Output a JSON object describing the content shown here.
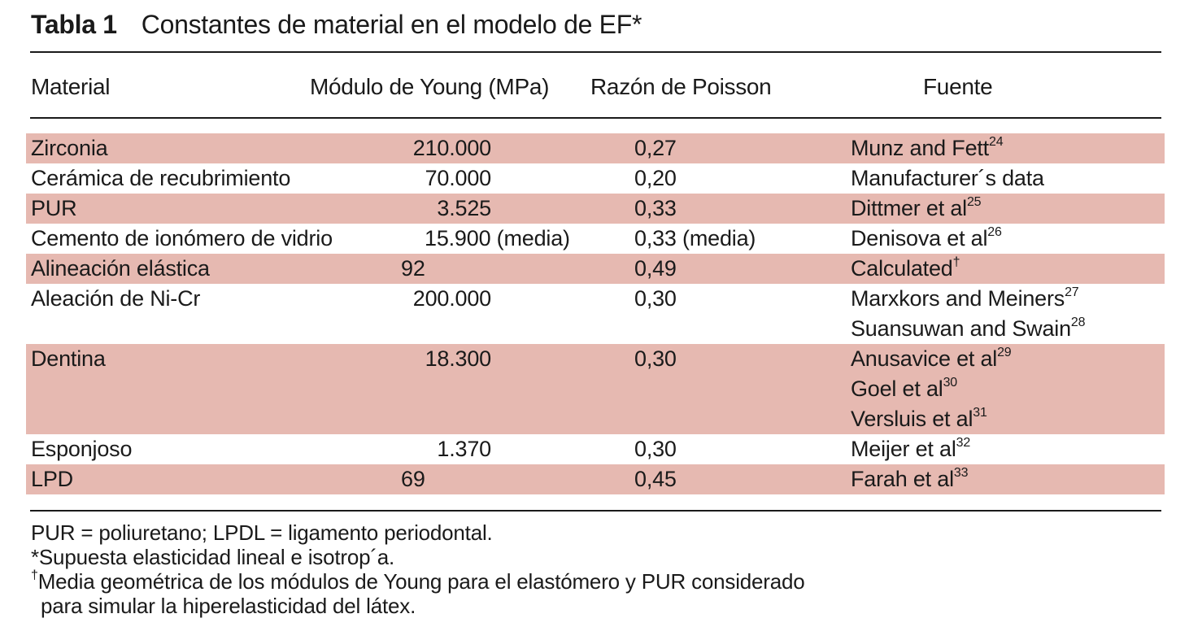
{
  "title": {
    "number": "Tabla 1",
    "text": "Constantes de material en el modelo de EF*"
  },
  "table": {
    "headers": {
      "material": "Material",
      "young": "Módulo de Young (MPa)",
      "poisson": "Razón de Poisson",
      "source": "Fuente"
    },
    "rows": [
      {
        "material": "Zirconia",
        "young": "210.000",
        "poisson": "0,27",
        "sources": [
          {
            "text": "Munz and Fett",
            "sup": "24"
          }
        ]
      },
      {
        "material": "Cerámica de recubrimiento",
        "young": "70.000",
        "poisson": "0,20",
        "sources": [
          {
            "text": "Manufacturer´s data",
            "sup": ""
          }
        ]
      },
      {
        "material": "PUR",
        "young": "3.525",
        "poisson": "0,33",
        "sources": [
          {
            "text": "Dittmer et al",
            "sup": "25"
          }
        ]
      },
      {
        "material": "Cemento de ionómero de vidrio",
        "young": "15.900 (media)",
        "poisson": "0,33 (media)",
        "sources": [
          {
            "text": "Denisova et al",
            "sup": "26"
          }
        ]
      },
      {
        "material": "Alineación elástica",
        "young": "92",
        "poisson": "0,49",
        "sources": [
          {
            "text": "Calculated",
            "sup": "†"
          }
        ]
      },
      {
        "material": "Aleación de Ni-Cr",
        "young": "200.000",
        "poisson": "0,30",
        "sources": [
          {
            "text": "Marxkors and Meiners",
            "sup": "27"
          },
          {
            "text": "Suansuwan and Swain",
            "sup": "28"
          }
        ]
      },
      {
        "material": "Dentina",
        "young": "18.300",
        "poisson": "0,30",
        "sources": [
          {
            "text": "Anusavice et al",
            "sup": "29"
          },
          {
            "text": "Goel et al",
            "sup": "30"
          },
          {
            "text": "Versluis et al",
            "sup": "31"
          }
        ]
      },
      {
        "material": "Esponjoso",
        "young": "1.370",
        "poisson": "0,30",
        "sources": [
          {
            "text": "Meijer et al",
            "sup": "32"
          }
        ]
      },
      {
        "material": "LPD",
        "young": "69",
        "poisson": "0,45",
        "sources": [
          {
            "text": "Farah et al",
            "sup": "33"
          }
        ]
      }
    ]
  },
  "notes": {
    "abbrev": "PUR = poliuretano; LPDL = ligamento periodontal.",
    "asterisk": "*Supuesta elasticidad lineal e isotrop´a.",
    "dagger_mark": "†",
    "dagger_line1": "Media geométrica de los módulos de Young para el elastómero y PUR considerado",
    "dagger_line2": "para simular la hiperelasticidad del látex."
  },
  "colors": {
    "shade": "#e6b9b1",
    "text": "#1a1a1a"
  }
}
